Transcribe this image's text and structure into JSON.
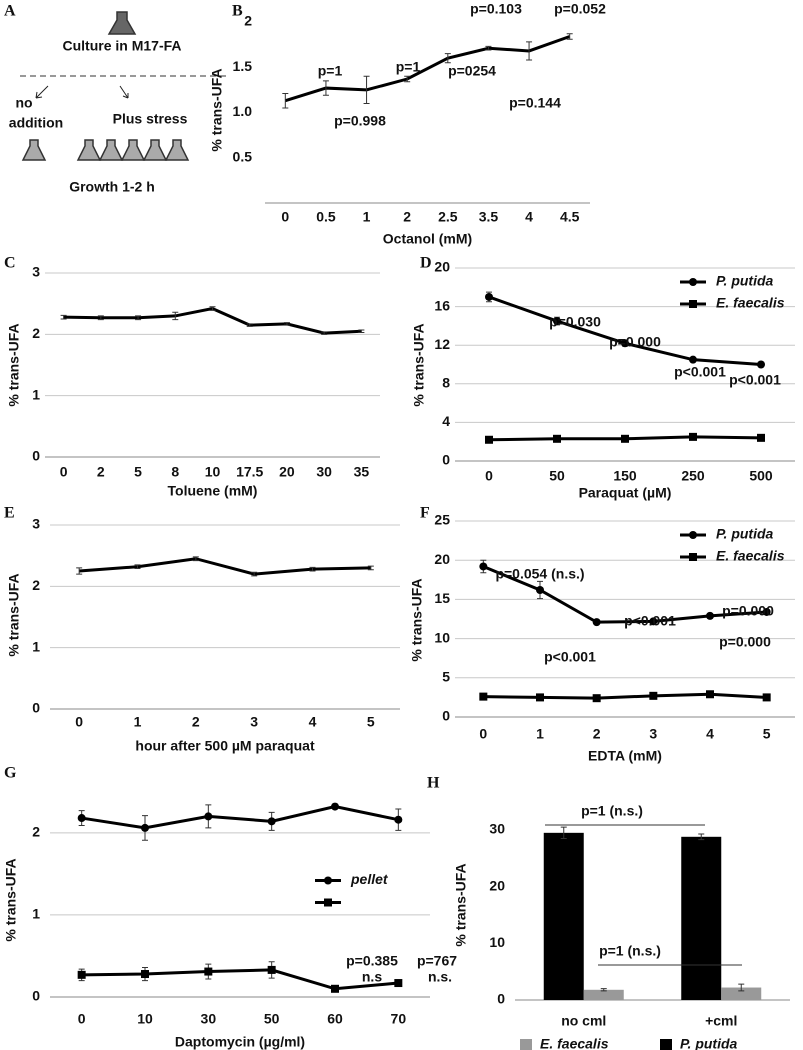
{
  "diagram": {
    "label": "A",
    "texts": [
      "Culture in M17-FA",
      "no",
      "addition",
      "Plus stress",
      "Growth 1-2 h"
    ]
  },
  "chart_data": [
    {
      "type": "line",
      "label": "B",
      "ylabel": "% trans-UFA",
      "xlabel": "Octanol (mM)",
      "categories": [
        "0",
        "0.5",
        "1",
        "2",
        "2.5",
        "3.5",
        "4",
        "4.5"
      ],
      "values": [
        1.13,
        1.27,
        1.25,
        1.37,
        1.6,
        1.71,
        1.68,
        1.84
      ],
      "errors": [
        0.08,
        0.08,
        0.15,
        0.03,
        0.05,
        0.02,
        0.1,
        0.03
      ],
      "color": "#000000",
      "ylim": [
        0,
        2
      ],
      "yticks": [
        {
          "value": 0.5,
          "label": "0.5"
        },
        {
          "value": 1,
          "label": "1.0"
        },
        {
          "value": 1.5,
          "label": "1.5"
        },
        2
      ],
      "grid": false,
      "annotations": [
        "p=1",
        "p=0.998",
        "p=1",
        "p=0254",
        "p=0.103",
        "p=0.144",
        "p=0.052"
      ]
    },
    {
      "type": "line",
      "label": "C",
      "ylabel": "% trans-UFA",
      "xlabel": "Toluene (mM)",
      "categories": [
        "0",
        "2",
        "5",
        "8",
        "10",
        "17.5",
        "20",
        "30",
        "35"
      ],
      "values": [
        2.28,
        2.27,
        2.27,
        2.3,
        2.42,
        2.15,
        2.17,
        2.02,
        2.05
      ],
      "errors": [
        0.03,
        0.03,
        0.03,
        0.06,
        0.03,
        0.02,
        0.02,
        0.02,
        0.02
      ],
      "color": "#000000",
      "ylim": [
        0,
        3
      ],
      "yticks": [
        0,
        1,
        2,
        3
      ],
      "grid": true,
      "annotations": []
    },
    {
      "type": "line",
      "label": "D",
      "ylabel": "% trans-UFA",
      "xlabel": "Paraquat (µM)",
      "categories": [
        "0",
        "50",
        "150",
        "250",
        "500"
      ],
      "series": [
        {
          "name": "P. putida",
          "color": "#000000",
          "marker": "circle",
          "values": [
            17,
            14.5,
            12.2,
            10.5,
            10
          ],
          "errors": [
            0.5,
            0.4,
            0.3,
            0.2,
            0.2
          ]
        },
        {
          "name": "E. faecalis",
          "color": "#000000",
          "marker": "square",
          "values": [
            2.2,
            2.3,
            2.3,
            2.5,
            2.4
          ],
          "errors": [
            0.2,
            0.2,
            0.2,
            0.2,
            0.2
          ]
        }
      ],
      "ylim": [
        0,
        20
      ],
      "yticks": [
        0,
        4,
        8,
        12,
        16,
        20
      ],
      "grid": true,
      "legend": "upper right",
      "annotations": [
        "p=0.030",
        "p=0.000",
        "p<0.001",
        "p<0.001"
      ]
    },
    {
      "type": "line",
      "label": "E",
      "ylabel": "% trans-UFA",
      "xlabel": "hour after 500 µM paraquat",
      "categories": [
        "0",
        "1",
        "2",
        "3",
        "4",
        "5"
      ],
      "values": [
        2.25,
        2.32,
        2.45,
        2.2,
        2.28,
        2.3
      ],
      "errors": [
        0.05,
        0.03,
        0.03,
        0.03,
        0.03,
        0.03
      ],
      "color": "#000000",
      "ylim": [
        0,
        3
      ],
      "yticks": [
        0,
        1,
        2,
        3
      ],
      "grid": true,
      "annotations": []
    },
    {
      "type": "line",
      "label": "F",
      "ylabel": "% trans-UFA",
      "xlabel": "EDTA (mM)",
      "categories": [
        "0",
        "1",
        "2",
        "3",
        "4",
        "5"
      ],
      "series": [
        {
          "name": "P. putida",
          "color": "#000000",
          "marker": "circle",
          "values": [
            19.2,
            16.2,
            12.1,
            12.2,
            12.9,
            13.4
          ],
          "errors": [
            0.8,
            1.1,
            0.2,
            0.2,
            0.2,
            0.2
          ]
        },
        {
          "name": "E. faecalis",
          "color": "#000000",
          "marker": "square",
          "values": [
            2.6,
            2.5,
            2.4,
            2.7,
            2.9,
            2.5
          ],
          "errors": [
            0.1,
            0.1,
            0.1,
            0.1,
            0.1,
            0.1
          ]
        }
      ],
      "ylim": [
        0,
        25
      ],
      "yticks": [
        0,
        5,
        10,
        15,
        20,
        25
      ],
      "grid": true,
      "legend": "upper right",
      "annotations": [
        "p=0.054 (n.s.)",
        "p<0.001",
        "p<0.001",
        "p=0.000",
        "p=0.000"
      ]
    },
    {
      "type": "line",
      "label": "G",
      "ylabel": "% trans-UFA",
      "xlabel": "Daptomycin (µg/ml)",
      "categories": [
        "0",
        "10",
        "30",
        "50",
        "60",
        "70"
      ],
      "series": [
        {
          "name": "pellet",
          "color": "#000000",
          "marker": "circle",
          "values": [
            2.18,
            2.06,
            2.2,
            2.14,
            2.32,
            2.16
          ],
          "errors": [
            0.09,
            0.15,
            0.14,
            0.11,
            0.03,
            0.13
          ]
        },
        {
          "name": null,
          "color": "#000000",
          "marker": "square",
          "values": [
            0.27,
            0.28,
            0.31,
            0.33,
            0.1,
            0.17
          ],
          "errors": [
            0.07,
            0.08,
            0.09,
            0.1,
            0.03,
            0.03
          ]
        }
      ],
      "ylim": [
        0,
        2.4
      ],
      "yticks": [
        0,
        1,
        2
      ],
      "grid": true,
      "legend": "center right",
      "annotations": [
        "p=0.385",
        "n.s",
        "p=767",
        "n.s."
      ]
    },
    {
      "type": "bar",
      "label": "H",
      "ylabel": "% trans-UFA",
      "categories": [
        "no cml",
        "+cml"
      ],
      "series": [
        {
          "name": "P. putida",
          "color": "#000000",
          "values": [
            29.5,
            28.8
          ],
          "errors": [
            1,
            0.5
          ]
        },
        {
          "name": "E. faecalis",
          "color": "#999999",
          "values": [
            1.8,
            2.2
          ],
          "errors": [
            0.2,
            0.6
          ]
        }
      ],
      "ylim": [
        0,
        33
      ],
      "yticks": [
        0,
        10,
        20,
        30
      ],
      "grid": false,
      "legend": "lower center",
      "annotations": [
        "p=1 (n.s.)",
        "p=1 (n.s.)"
      ]
    }
  ]
}
